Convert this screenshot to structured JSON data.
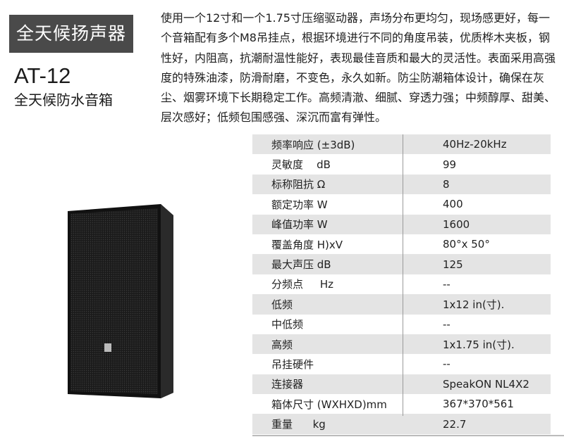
{
  "header": {
    "tag": "全天候扬声器",
    "model": "AT-12",
    "subtitle": "全天候防水音箱"
  },
  "description": "使用一个12寸和一个1.75寸压缩驱动器，声场分布更均匀，现场感更好，每一个音箱配有多个M8吊挂点，根据环境进行不同的角度吊装，优质桦木夹板，钢性好，内阻高，抗潮耐温性能好，表现最佳音质和最大的灵活性。表面采用高强度的特殊油漆，防滑耐磨，不变色，永久如新。防尘防潮箱体设计，确保在灰尘、烟雾环境下长期稳定工作。高频清澈、细腻、穿透力强；中频醇厚、甜美、层次感好；低频包围感强、深沉而富有弹性。",
  "specs": [
    {
      "label": "频率响应 (±3dB)",
      "value": "40Hz-20kHz"
    },
    {
      "label": "灵敏度    dB",
      "value": "99"
    },
    {
      "label": "标称阻抗 Ω",
      "value": "8"
    },
    {
      "label": "额定功率 W",
      "value": "400"
    },
    {
      "label": "峰值功率 W",
      "value": "1600"
    },
    {
      "label": "覆盖角度 H)xV",
      "value": "80°x 50°"
    },
    {
      "label": "最大声压 dB",
      "value": "125"
    },
    {
      "label": "分频点     Hz",
      "value": "--"
    },
    {
      "label": "低频",
      "value": "1x12 in(寸)."
    },
    {
      "label": "中低频",
      "value": "--"
    },
    {
      "label": "高频",
      "value": "1x1.75 in(寸)."
    },
    {
      "label": "吊挂硬件",
      "value": "--"
    },
    {
      "label": "连接器",
      "value": "SpeakON NL4X2"
    },
    {
      "label": "箱体尺寸 (WXHXD)mm",
      "value": "367*370*561"
    },
    {
      "label": "重量      kg",
      "value": "22.7"
    }
  ],
  "colors": {
    "tag_bg": "#4a4a4a",
    "row_shade": "#e4e4e4"
  }
}
